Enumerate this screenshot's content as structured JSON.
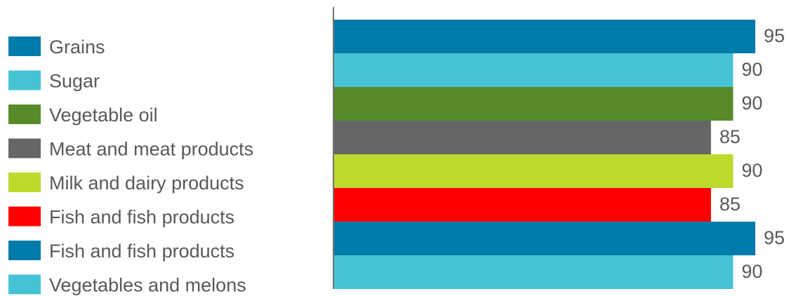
{
  "chart_data": {
    "type": "bar",
    "orientation": "horizontal",
    "categories": [
      "Grains",
      "Sugar",
      "Vegetable oil",
      "Meat and meat products",
      "Milk and dairy products",
      "Fish and fish products",
      "Fish and fish products",
      "Vegetables and melons"
    ],
    "values": [
      95,
      90,
      90,
      85,
      90,
      85,
      95,
      90
    ],
    "colors": [
      "#007BAA",
      "#45C3D4",
      "#578A29",
      "#666666",
      "#BED82C",
      "#FF0000",
      "#007BAA",
      "#45C3D4"
    ],
    "data_labels": [
      "95",
      "90",
      "90",
      "85",
      "90",
      "85",
      "95",
      "90"
    ],
    "legend_position": "left",
    "grid": false,
    "title": "",
    "xlabel": "",
    "ylabel": "",
    "xlim": [
      0,
      95
    ]
  }
}
